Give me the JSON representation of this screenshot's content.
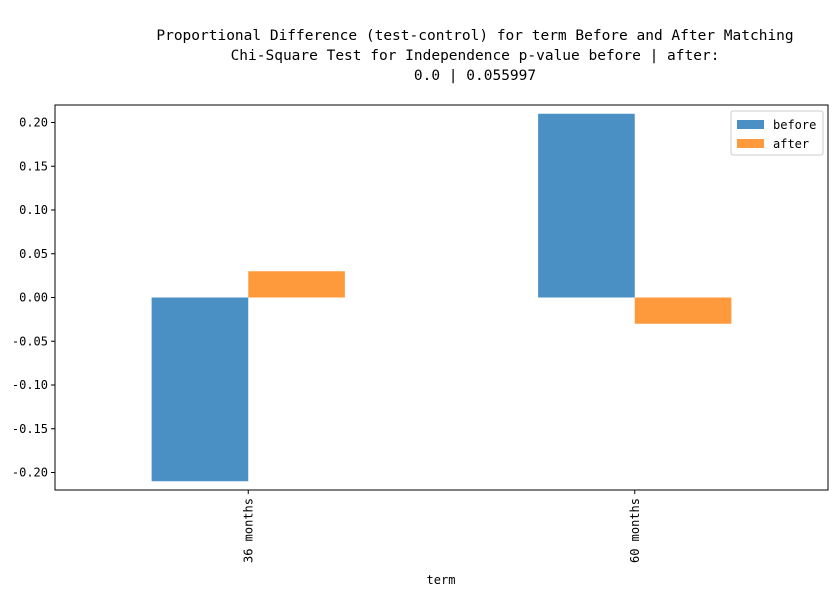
{
  "chart_data": {
    "type": "bar",
    "title_lines": [
      "Proportional Difference (test-control) for term Before and After Matching",
      "Chi-Square Test for Independence p-value before | after:",
      "0.0 | 0.055997"
    ],
    "xlabel": "term",
    "ylabel": "",
    "categories": [
      "36 months",
      "60 months"
    ],
    "series": [
      {
        "name": "before",
        "values": [
          -0.21,
          0.21
        ],
        "color": "#4a90c4"
      },
      {
        "name": "after",
        "values": [
          0.03,
          -0.03
        ],
        "color": "#ff9a3c"
      }
    ],
    "ylim": [
      -0.22,
      0.22
    ],
    "yticks": [
      {
        "value": 0.2,
        "label": "0.20"
      },
      {
        "value": 0.15,
        "label": "0.15"
      },
      {
        "value": 0.1,
        "label": "0.10"
      },
      {
        "value": 0.05,
        "label": "0.05"
      },
      {
        "value": 0.0,
        "label": "0.00"
      },
      {
        "value": -0.05,
        "label": "-0.05"
      },
      {
        "value": -0.1,
        "label": "-0.10"
      },
      {
        "value": -0.15,
        "label": "-0.15"
      },
      {
        "value": -0.2,
        "label": "-0.20"
      }
    ],
    "legend_position": "top-right",
    "grid": false
  }
}
